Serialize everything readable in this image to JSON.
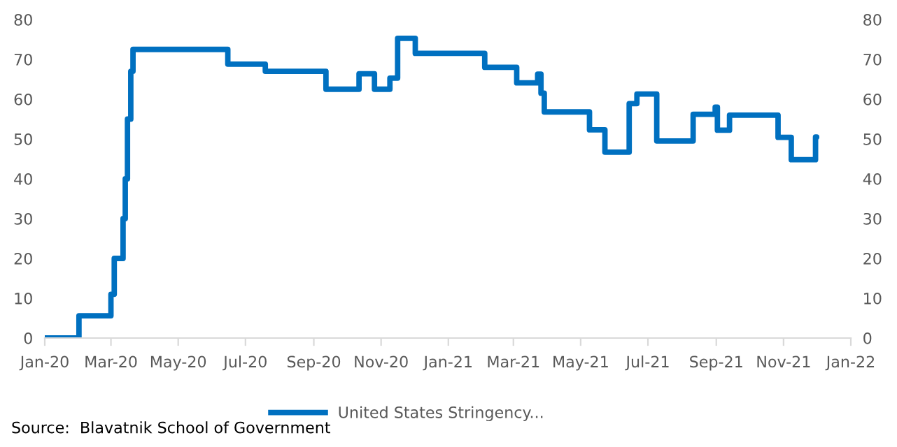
{
  "chart_data": {
    "type": "step",
    "x": [
      "2020-01-01",
      "2020-02-01",
      "2020-03-01",
      "2020-03-04",
      "2020-03-12",
      "2020-03-14",
      "2020-03-16",
      "2020-03-19",
      "2020-03-21",
      "2020-06-15",
      "2020-07-19",
      "2020-09-12",
      "2020-10-12",
      "2020-10-26",
      "2020-11-09",
      "2020-11-16",
      "2020-12-02",
      "2021-02-03",
      "2021-03-04",
      "2021-03-23",
      "2021-03-26",
      "2021-03-29",
      "2021-05-09",
      "2021-05-23",
      "2021-06-14",
      "2021-06-21",
      "2021-07-09",
      "2021-08-11",
      "2021-08-31",
      "2021-09-02",
      "2021-09-13",
      "2021-10-27",
      "2021-11-08",
      "2021-11-30",
      "2021-12-01"
    ],
    "series": [
      {
        "name": "United States Stringency...",
        "color": "#0070c0",
        "values": [
          0,
          5.6,
          11,
          20,
          30,
          40,
          55,
          67,
          72.5,
          68.8,
          67,
          62.5,
          66.4,
          62.5,
          65.3,
          75.3,
          71.5,
          68,
          64.1,
          66.3,
          61.5,
          56.8,
          52.3,
          46.7,
          58.9,
          61.3,
          49.5,
          56.2,
          58,
          52.2,
          56,
          50.4,
          44.8,
          50.5,
          50.5
        ]
      }
    ],
    "xlim": [
      "2020-01-01",
      "2022-01-01"
    ],
    "xticks": [
      {
        "value": "2020-01-01",
        "label": "Jan-20"
      },
      {
        "value": "2020-03-01",
        "label": "Mar-20"
      },
      {
        "value": "2020-05-01",
        "label": "May-20"
      },
      {
        "value": "2020-07-01",
        "label": "Jul-20"
      },
      {
        "value": "2020-09-01",
        "label": "Sep-20"
      },
      {
        "value": "2020-11-01",
        "label": "Nov-20"
      },
      {
        "value": "2021-01-01",
        "label": "Jan-21"
      },
      {
        "value": "2021-03-01",
        "label": "Mar-21"
      },
      {
        "value": "2021-05-01",
        "label": "May-21"
      },
      {
        "value": "2021-07-01",
        "label": "Jul-21"
      },
      {
        "value": "2021-09-01",
        "label": "Sep-21"
      },
      {
        "value": "2021-11-01",
        "label": "Nov-21"
      },
      {
        "value": "2022-01-01",
        "label": "Jan-22"
      }
    ],
    "ylim": [
      0,
      80
    ],
    "yticks": [
      0,
      10,
      20,
      30,
      40,
      50,
      60,
      70,
      80
    ],
    "y2lim": [
      0,
      80
    ],
    "y2ticks": [
      0,
      10,
      20,
      30,
      40,
      50,
      60,
      70,
      80
    ],
    "grid": false,
    "legend": "bottom",
    "annotations": [
      "Source:  Blavatnik School of Government"
    ]
  }
}
